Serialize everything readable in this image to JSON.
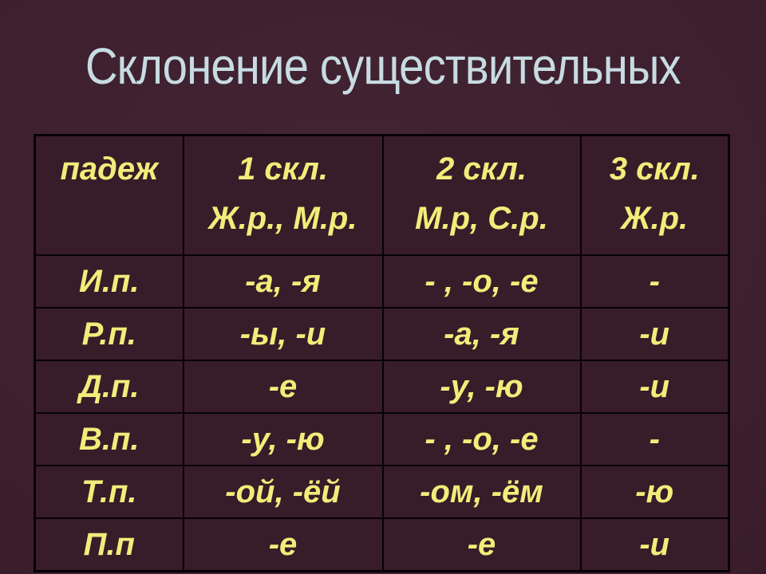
{
  "slide": {
    "title": "Склонение существительных",
    "colors": {
      "background": "#3c1e2c",
      "cell_background": "#381c2a",
      "border": "#060207",
      "title_text": "#c7dce2",
      "table_text": "#f3ec7a"
    }
  },
  "table": {
    "header": {
      "case_label": "падеж",
      "columns": [
        {
          "line1": "1 скл.",
          "line2": "Ж.р., М.р."
        },
        {
          "line1": "2 скл.",
          "line2": "М.р, С.р."
        },
        {
          "line1": "3 скл.",
          "line2": "Ж.р."
        }
      ]
    },
    "rows": [
      {
        "case": "И.п.",
        "d1": "-а, -я",
        "d2": "- , -о, -е",
        "d3": "-"
      },
      {
        "case": "Р.п.",
        "d1": "-ы, -и",
        "d2": "-а, -я",
        "d3": "-и"
      },
      {
        "case": "Д.п.",
        "d1": "-е",
        "d2": "-у, -ю",
        "d3": "-и"
      },
      {
        "case": "В.п.",
        "d1": "-у, -ю",
        "d2": "- , -о, -е",
        "d3": "-"
      },
      {
        "case": "Т.п.",
        "d1": "-ой, -ёй",
        "d2": "-ом, -ём",
        "d3": "-ю"
      },
      {
        "case": "П.п",
        "d1": "-е",
        "d2": "-е",
        "d3": "-и"
      }
    ]
  }
}
